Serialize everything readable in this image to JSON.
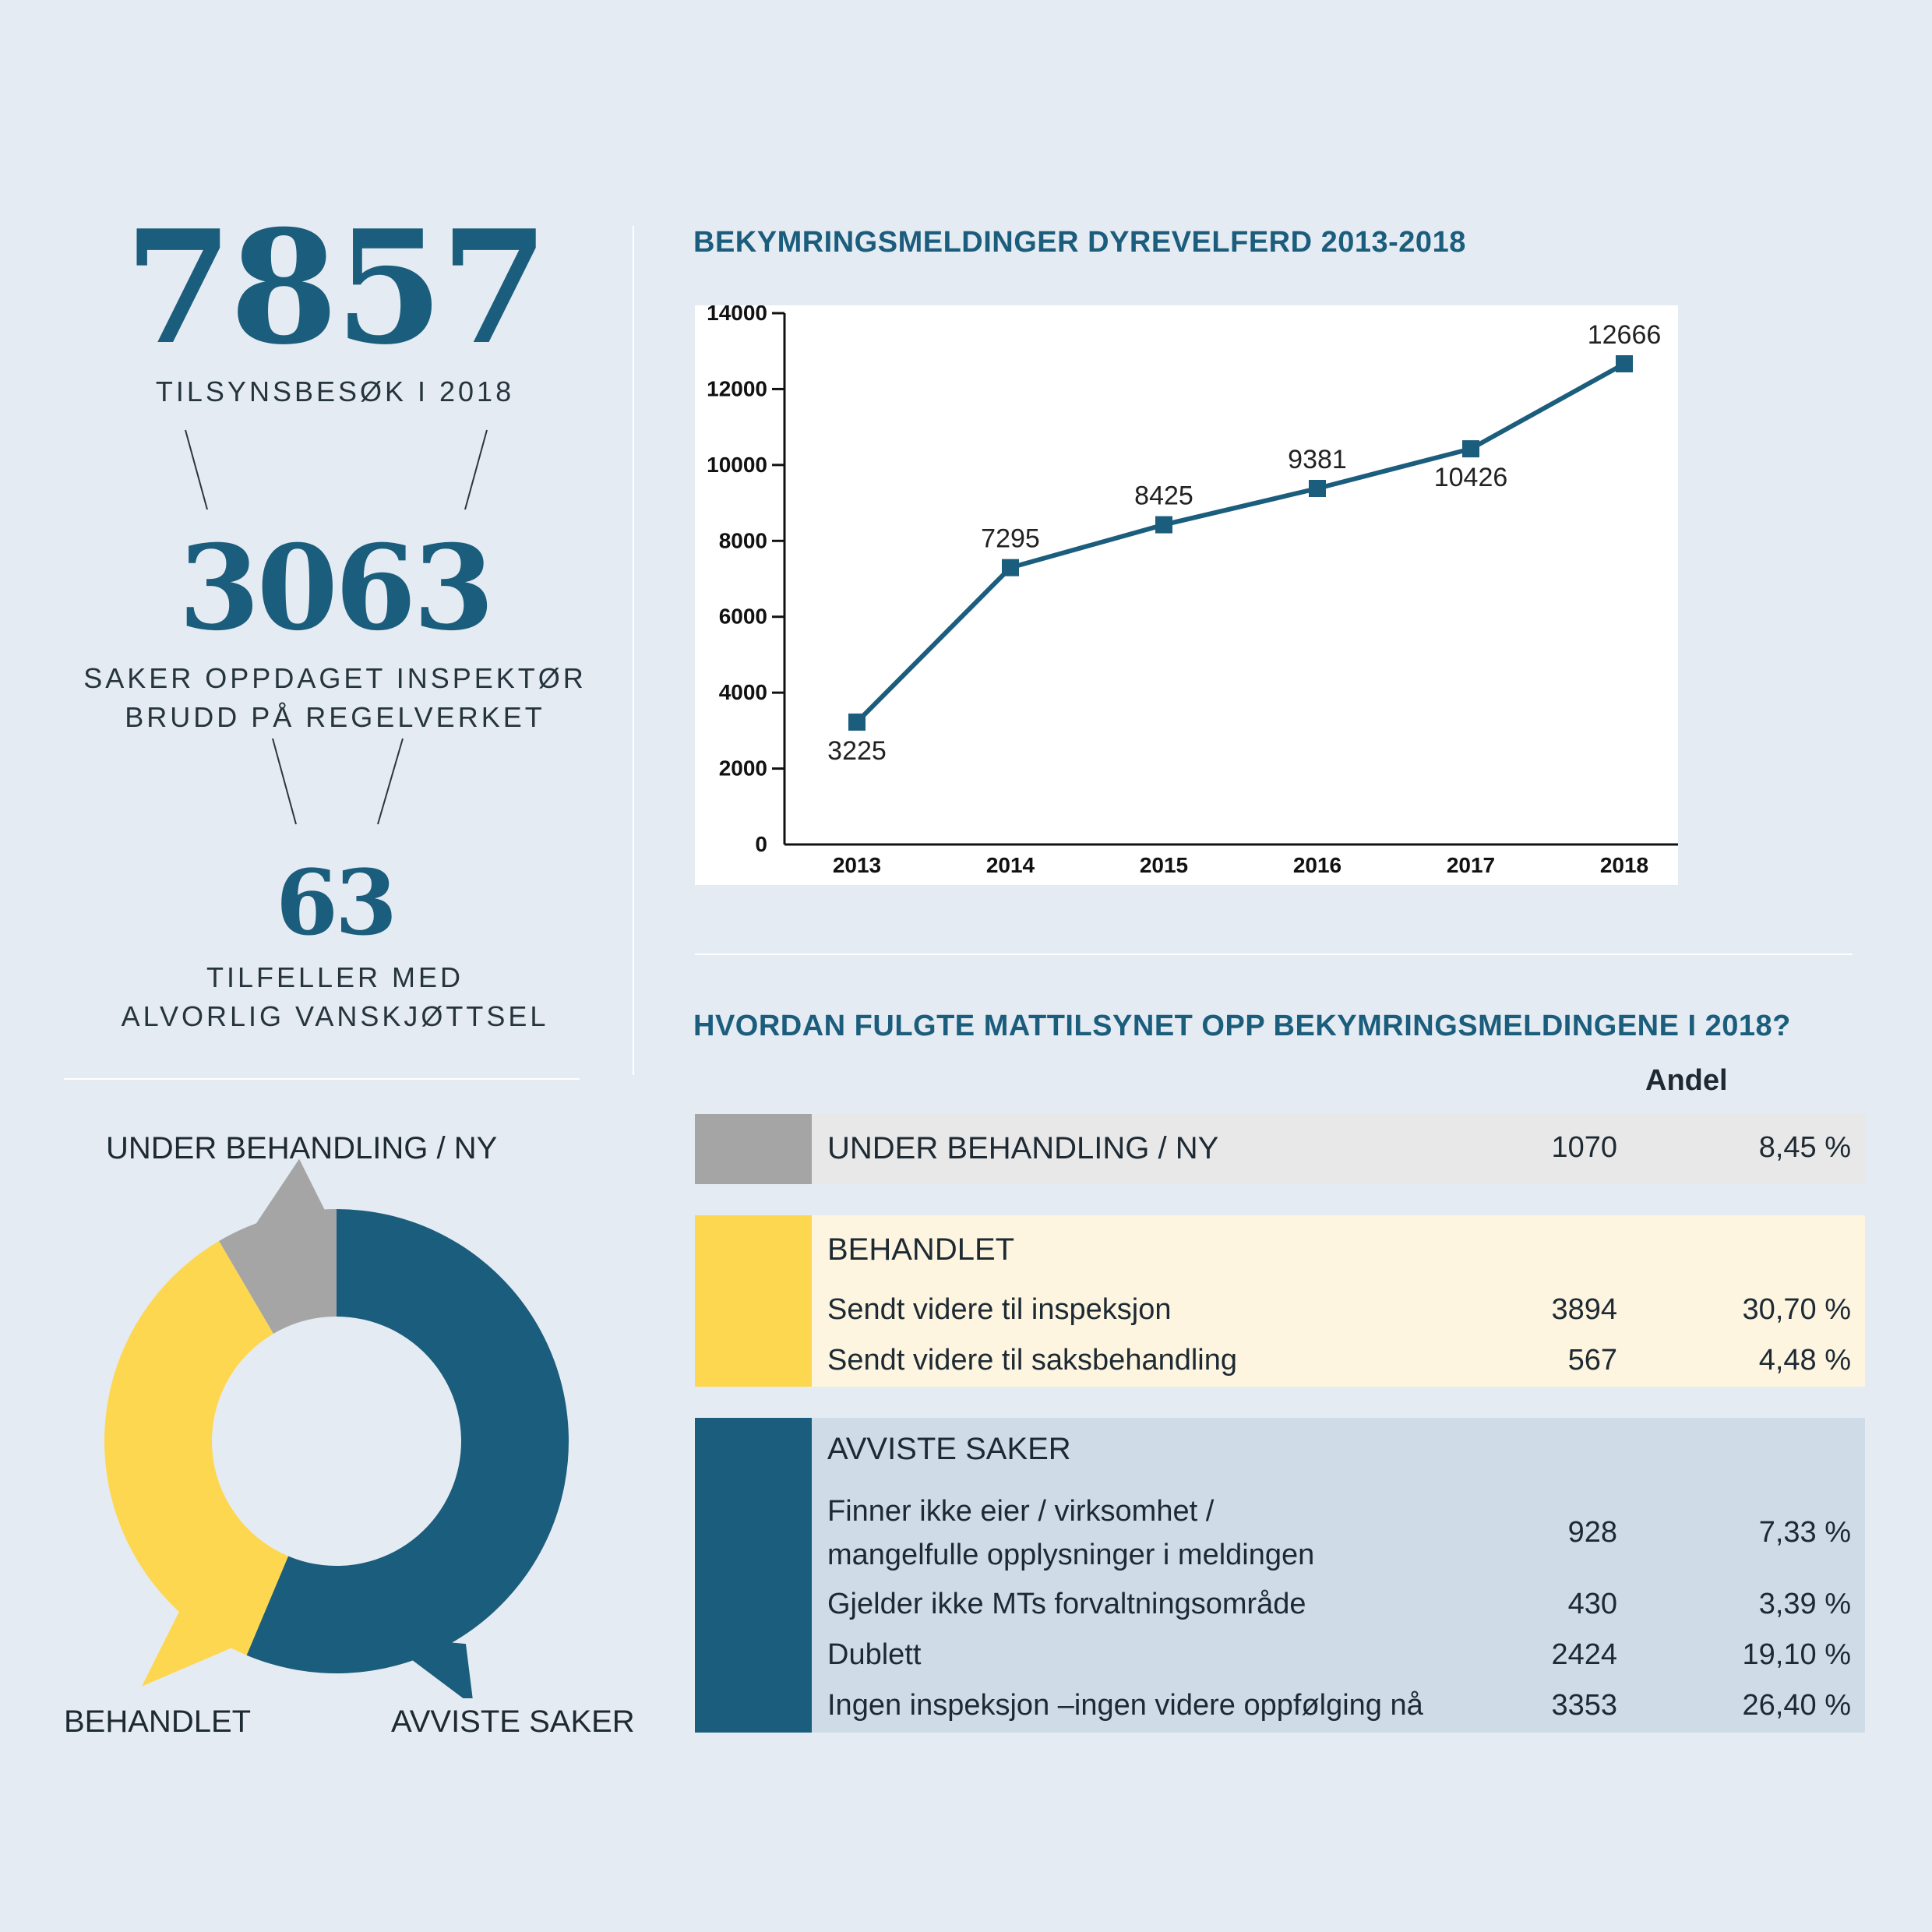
{
  "stats": {
    "visits": {
      "value": "7857",
      "caption": "TILSYNSBESØK I 2018"
    },
    "cases": {
      "value": "3063",
      "caption_line1": "SAKER OPPDAGET INSPEKTØR",
      "caption_line2": "BRUDD PÅ REGELVERKET"
    },
    "neglect": {
      "value": "63",
      "caption_line1": "TILFELLER MED",
      "caption_line2": "ALVORLIG VANSKJØTTSEL"
    }
  },
  "line_chart_title": "BEKYMRINGSMELDINGER DYREVELFERD 2013-2018",
  "table_title": "HVORDAN FULGTE MATTILSYNET OPP BEKYMRINGSMELDINGENE I 2018?",
  "colors": {
    "accent": "#1b5d7c",
    "gray": "#a5a5a5",
    "yellow": "#fed750",
    "light_gray_bg": "#e8e8e8",
    "light_yellow_bg": "#fdf5e0",
    "light_blue_bg": "#cfdbe6"
  },
  "donut": {
    "label_under": "UNDER BEHANDLING / NY",
    "label_behandlet": "BEHANDLET",
    "label_avviste": "AVVISTE SAKER"
  },
  "table": {
    "column_header": "Andel",
    "under": {
      "title": "UNDER BEHANDLING / NY",
      "count": "1070",
      "pct": "8,45 %"
    },
    "behandlet": {
      "title": "BEHANDLET",
      "rows": [
        {
          "label": "Sendt videre til inspeksjon",
          "count": "3894",
          "pct": "30,70 %"
        },
        {
          "label": "Sendt videre til saksbehandling",
          "count": "567",
          "pct": "4,48 %"
        }
      ]
    },
    "avviste": {
      "title": "AVVISTE SAKER",
      "rows": [
        {
          "label_line1": "Finner ikke eier / virksomhet /",
          "label_line2": "mangelfulle opplysninger i meldingen",
          "count": "928",
          "pct": "7,33 %"
        },
        {
          "label": "Gjelder ikke MTs forvaltningsområde",
          "count": "430",
          "pct": "3,39 %"
        },
        {
          "label": "Dublett",
          "count": "2424",
          "pct": "19,10 %"
        },
        {
          "label": "Ingen inspeksjon –ingen videre oppfølging nå",
          "count": "3353",
          "pct": "26,40 %"
        }
      ]
    }
  },
  "chart_data": [
    {
      "type": "line",
      "title": "BEKYMRINGSMELDINGER DYREVELFERD 2013-2018",
      "categories": [
        "2013",
        "2014",
        "2015",
        "2016",
        "2017",
        "2018"
      ],
      "series": [
        {
          "values": [
            3225,
            7295,
            8425,
            9381,
            10426,
            12666
          ]
        }
      ],
      "data_labels": [
        "3225",
        "7295",
        "8425",
        "9381",
        "10426",
        "12666"
      ],
      "yticks": [
        "0",
        "2000",
        "4000",
        "6000",
        "8000",
        "10000",
        "12000",
        "14000"
      ],
      "ylim": [
        0,
        14000
      ],
      "grid": false
    },
    {
      "type": "pie",
      "donut": true,
      "categories": [
        "UNDER BEHANDLING / NY",
        "BEHANDLET",
        "AVVISTE SAKER"
      ],
      "values": [
        1070,
        4461,
        7135
      ],
      "colors": [
        "#a5a5a5",
        "#fed750",
        "#1b5d7c"
      ]
    }
  ]
}
